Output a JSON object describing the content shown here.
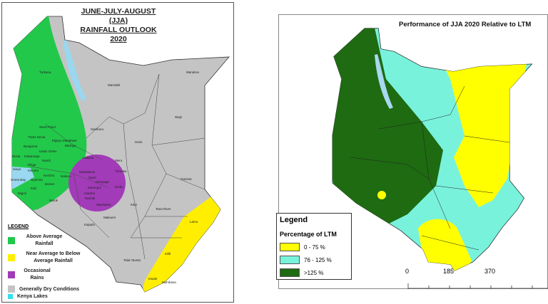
{
  "left_map": {
    "title_line1": "JUNE-JULY-AUGUST (JJA)",
    "title_line2": "RAINFALL OUTLOOK 2020",
    "counties": [
      "Turkana",
      "Marsabit",
      "Mandera",
      "Wajir",
      "Samburu",
      "Isiolo",
      "West Pokot",
      "Trans Nzoia",
      "Elgeyo Marakwet",
      "Baringo",
      "Bungoma",
      "Uasin Gishu",
      "Busia",
      "Kakamega",
      "Nandi",
      "Vihiga",
      "Siaya",
      "Kisumu",
      "Kericho",
      "Nakuru",
      "Homa Bay",
      "Nyamira",
      "Kisii",
      "Bomet",
      "Migori",
      "Laikipia",
      "Meru",
      "Nyandarua",
      "Tharaka",
      "Nyeri",
      "Kirinyaga",
      "Embu",
      "Murang'a",
      "Kiambu",
      "Nairobi",
      "Machakos",
      "Narok",
      "Kajiado",
      "Makueni",
      "Kitui",
      "Tana River",
      "Garissa",
      "Lamu",
      "Kilifi",
      "Taita Taveta",
      "Kwale",
      "Mombasa"
    ],
    "legend": {
      "title": "LEGEND",
      "items": [
        {
          "label": "Above Average Rainfall",
          "color": "#22c84a"
        },
        {
          "label": "Near Average to Below Average Rainfall",
          "color": "#ffee00"
        },
        {
          "label": "Occasional Rains",
          "color": "#a23bb8"
        },
        {
          "label": "Generally Dry Conditions",
          "color": "#c4c4c4"
        },
        {
          "label": "Kenya Lakes",
          "color": "#33e0f0"
        }
      ]
    }
  },
  "right_map": {
    "title": "Performance of JJA 2020 Relative to LTM",
    "legend": {
      "title": "Legend",
      "subtitle": "Percentage of LTM",
      "items": [
        {
          "label": "0 - 75 %",
          "color": "#ffff00"
        },
        {
          "label": "76 - 125 %",
          "color": "#79f2dc"
        },
        {
          "label": ">125 %",
          "color": "#1e6b12"
        }
      ]
    },
    "scale_bar": [
      "0",
      "185",
      "370"
    ]
  }
}
